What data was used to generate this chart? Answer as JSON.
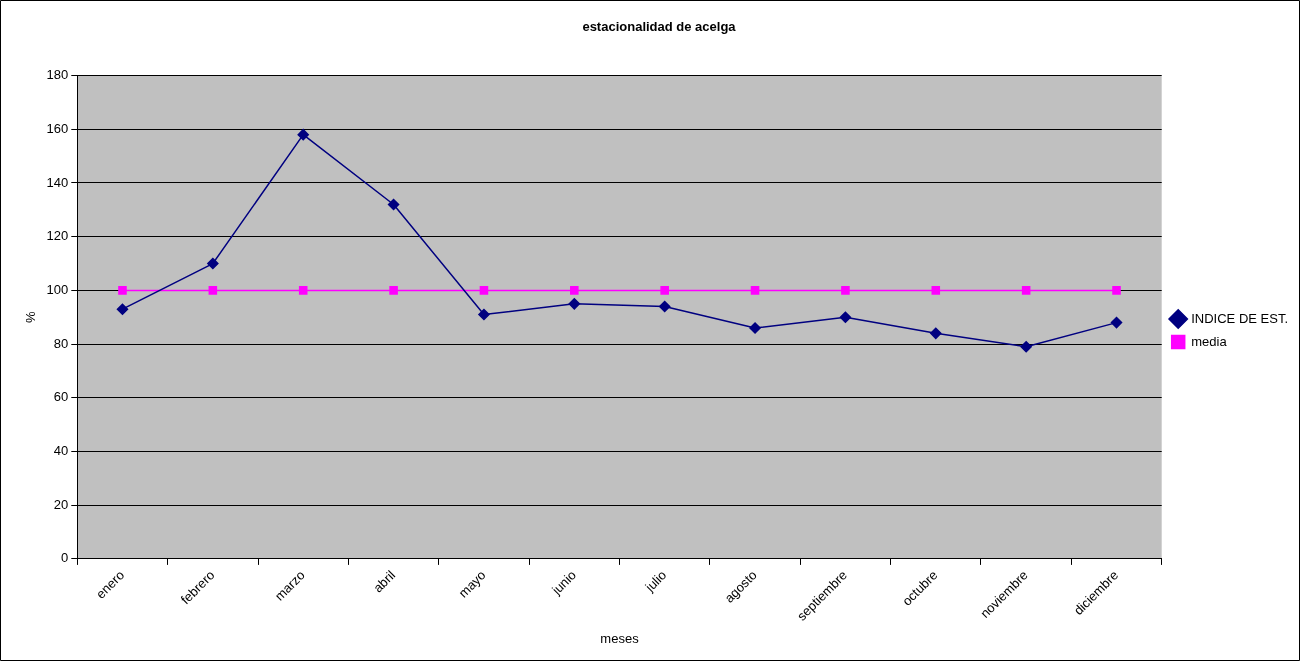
{
  "chart_data": {
    "type": "line",
    "title": "estacionalidad de acelga",
    "xlabel": "meses",
    "ylabel": "%",
    "categories": [
      "enero",
      "febrero",
      "marzo",
      "abril",
      "mayo",
      "junio",
      "julio",
      "agosto",
      "septiembre",
      "octubre",
      "noviembre",
      "diciembre"
    ],
    "series": [
      {
        "name": "INDICE DE EST.",
        "color": "#000080",
        "marker": "diamond",
        "values": [
          93,
          110,
          158,
          132,
          91,
          95,
          94,
          86,
          90,
          84,
          79,
          88
        ]
      },
      {
        "name": "media",
        "color": "#ff00ff",
        "marker": "square",
        "values": [
          100,
          100,
          100,
          100,
          100,
          100,
          100,
          100,
          100,
          100,
          100,
          100
        ]
      }
    ],
    "ylim": [
      0,
      180
    ],
    "yticks": [
      0,
      20,
      40,
      60,
      80,
      100,
      120,
      140,
      160,
      180
    ],
    "grid": "y",
    "legend": "right"
  }
}
